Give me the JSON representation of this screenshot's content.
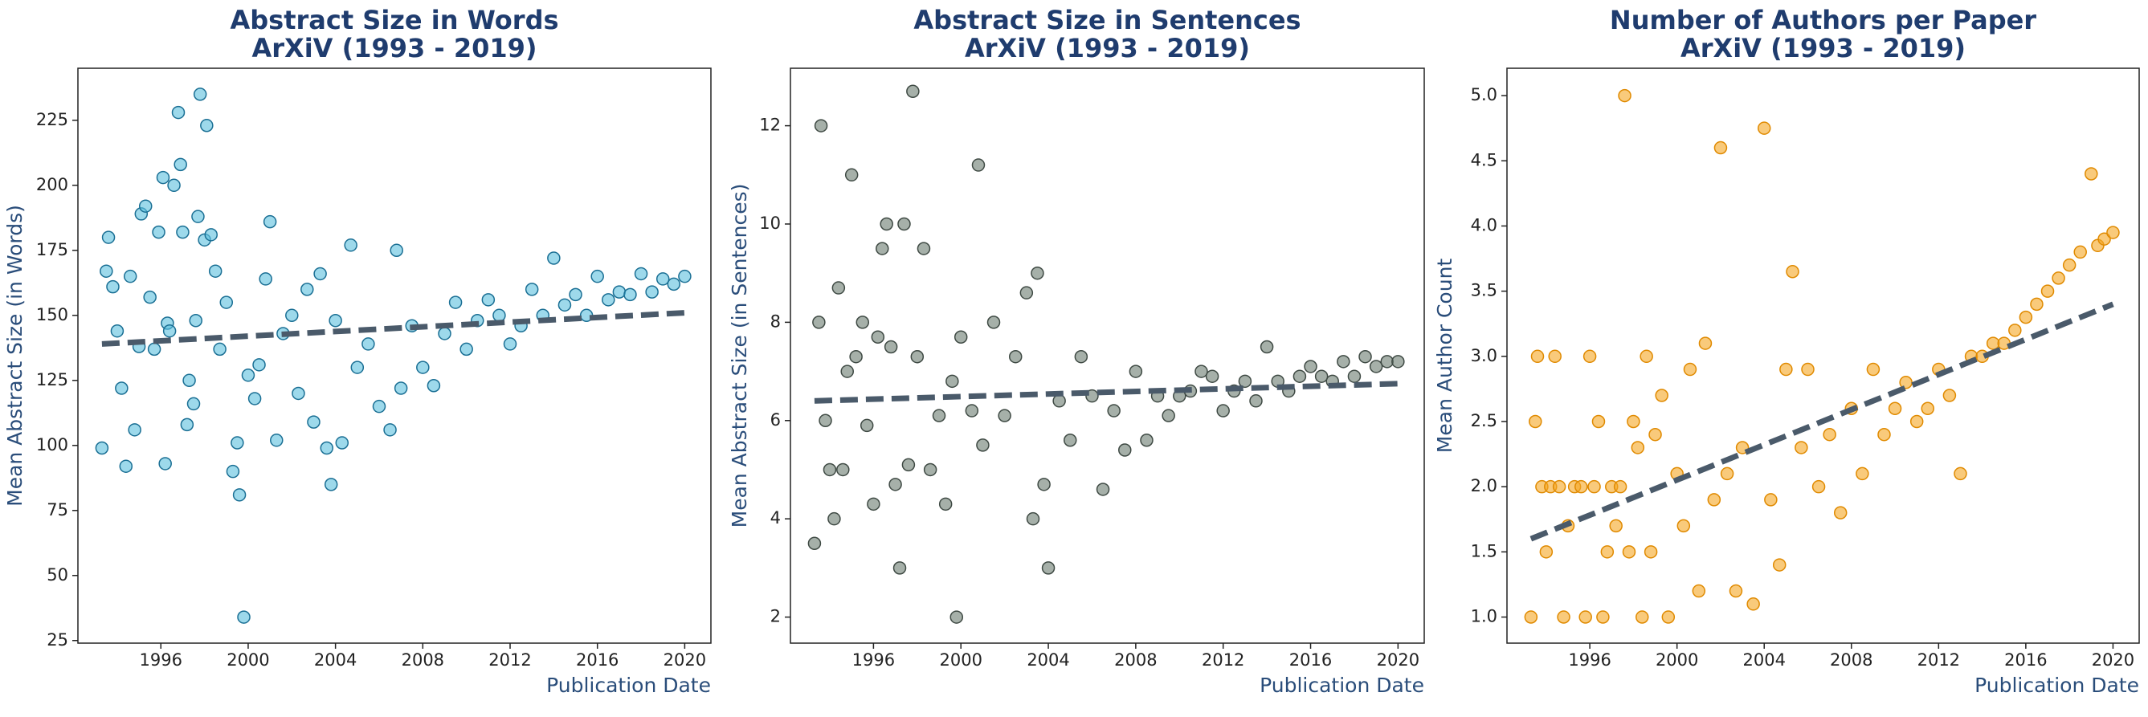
{
  "chart_data": [
    {
      "type": "scatter",
      "title": [
        "Abstract Size in Words",
        "ArXiV (1993 - 2019)"
      ],
      "xlabel": "Publication Date",
      "ylabel": "Mean Abstract Size (in Words)",
      "color": "#5bc0de",
      "edgecolor": "#1a6f94",
      "xlim": [
        1992.2,
        2021.2
      ],
      "xticks": [
        1996,
        2000,
        2004,
        2008,
        2012,
        2016,
        2020
      ],
      "ylim": [
        24,
        245
      ],
      "yticks": [
        25,
        50,
        75,
        100,
        125,
        150,
        175,
        200,
        225
      ],
      "x": [
        1993.3,
        1993.5,
        1993.6,
        1993.8,
        1994,
        1994.2,
        1994.4,
        1994.6,
        1994.8,
        1995,
        1995.1,
        1995.3,
        1995.5,
        1995.7,
        1995.9,
        1996.1,
        1996.2,
        1996.3,
        1996.4,
        1996.6,
        1996.8,
        1996.9,
        1997,
        1997.2,
        1997.3,
        1997.5,
        1997.6,
        1997.7,
        1997.8,
        1998,
        1998.1,
        1998.3,
        1998.5,
        1998.7,
        1999,
        1999.3,
        1999.5,
        1999.6,
        1999.8,
        2000,
        2000.3,
        2000.5,
        2000.8,
        2001,
        2001.3,
        2001.6,
        2002,
        2002.3,
        2002.7,
        2003,
        2003.3,
        2003.6,
        2003.8,
        2004,
        2004.3,
        2004.7,
        2005,
        2005.5,
        2006,
        2006.5,
        2006.8,
        2007,
        2007.5,
        2008,
        2008.5,
        2009,
        2009.5,
        2010,
        2010.5,
        2011,
        2011.5,
        2012,
        2012.5,
        2013,
        2013.5,
        2014,
        2014.5,
        2015,
        2015.5,
        2016,
        2016.5,
        2017,
        2017.5,
        2018,
        2018.5,
        2019,
        2019.5,
        2020
      ],
      "y": [
        99,
        167,
        180,
        161,
        144,
        122,
        92,
        165,
        106,
        138,
        189,
        192,
        157,
        137,
        182,
        203,
        93,
        147,
        144,
        200,
        228,
        208,
        182,
        108,
        125,
        116,
        148,
        188,
        235,
        179,
        223,
        181,
        167,
        137,
        155,
        90,
        101,
        81,
        34,
        127,
        118,
        131,
        164,
        186,
        102,
        143,
        150,
        120,
        160,
        109,
        166,
        99,
        85,
        148,
        101,
        177,
        130,
        139,
        115,
        106,
        175,
        122,
        146,
        130,
        123,
        143,
        155,
        137,
        148,
        156,
        150,
        139,
        146,
        160,
        150,
        172,
        154,
        158,
        150,
        165,
        156,
        159,
        158,
        166,
        159,
        164,
        162,
        165
      ],
      "trend": {
        "color": "#4a5a6a",
        "x": [
          1993.3,
          2020
        ],
        "y": [
          139,
          151
        ]
      }
    },
    {
      "type": "scatter",
      "title": [
        "Abstract Size in Sentences",
        "ArXiV (1993 - 2019)"
      ],
      "xlabel": "Publication Date",
      "ylabel": "Mean Abstract Size (in Sentences)",
      "color": "#6b7b70",
      "edgecolor": "#3f4a44",
      "xlim": [
        1992.2,
        2021.2
      ],
      "xticks": [
        1996,
        2000,
        2004,
        2008,
        2012,
        2016,
        2020
      ],
      "ylim": [
        1.47,
        13.17
      ],
      "yticks": [
        2,
        4,
        6,
        8,
        10,
        12
      ],
      "x": [
        1993.3,
        1993.5,
        1993.6,
        1993.8,
        1994,
        1994.2,
        1994.4,
        1994.6,
        1994.8,
        1995,
        1995.2,
        1995.5,
        1995.7,
        1996,
        1996.2,
        1996.4,
        1996.6,
        1996.8,
        1997,
        1997.2,
        1997.4,
        1997.6,
        1997.8,
        1998,
        1998.3,
        1998.6,
        1999,
        1999.3,
        1999.6,
        1999.8,
        2000,
        2000.5,
        2000.8,
        2001,
        2001.5,
        2002,
        2002.5,
        2003,
        2003.3,
        2003.5,
        2003.8,
        2004,
        2004.5,
        2005,
        2005.5,
        2006,
        2006.5,
        2007,
        2007.5,
        2008,
        2008.5,
        2009,
        2009.5,
        2010,
        2010.5,
        2011,
        2011.5,
        2012,
        2012.5,
        2013,
        2013.5,
        2014,
        2014.5,
        2015,
        2015.5,
        2016,
        2016.5,
        2017,
        2017.5,
        2018,
        2018.5,
        2019,
        2019.5,
        2020
      ],
      "y": [
        3.5,
        8,
        12,
        6,
        5,
        4,
        8.7,
        5,
        7,
        11,
        7.3,
        8,
        5.9,
        4.3,
        7.7,
        9.5,
        10,
        7.5,
        4.7,
        3,
        10,
        5.1,
        12.7,
        7.3,
        9.5,
        5,
        6.1,
        4.3,
        6.8,
        2,
        7.7,
        6.2,
        11.2,
        5.5,
        8,
        6.1,
        7.3,
        8.6,
        4,
        9,
        4.7,
        3,
        6.4,
        5.6,
        7.3,
        6.5,
        4.6,
        6.2,
        5.4,
        7,
        5.6,
        6.5,
        6.1,
        6.5,
        6.6,
        7,
        6.9,
        6.2,
        6.6,
        6.8,
        6.4,
        7.5,
        6.8,
        6.6,
        6.9,
        7.1,
        6.9,
        6.8,
        7.2,
        6.9,
        7.3,
        7.1,
        7.2,
        7.2
      ],
      "trend": {
        "color": "#4a5a6a",
        "x": [
          1993.3,
          2020
        ],
        "y": [
          6.4,
          6.75
        ]
      }
    },
    {
      "type": "scatter",
      "title": [
        "Number of Authors per Paper",
        "ArXiV (1993 - 2019)"
      ],
      "xlabel": "Publication Date",
      "ylabel": "Mean Author Count",
      "color": "#f5a623",
      "edgecolor": "#e08a00",
      "xlim": [
        1992.2,
        2021.2
      ],
      "xticks": [
        1996,
        2000,
        2004,
        2008,
        2012,
        2016,
        2020
      ],
      "ylim": [
        0.8,
        5.21
      ],
      "yticks": [
        {
          "value": 1,
          "label": "1.0"
        },
        1.5,
        {
          "value": 2,
          "label": "2.0"
        },
        2.5,
        {
          "value": 3,
          "label": "3.0"
        },
        3.5,
        {
          "value": 4,
          "label": "4.0"
        },
        4.5,
        {
          "value": 5,
          "label": "5.0"
        }
      ],
      "x": [
        1993.3,
        1993.5,
        1993.6,
        1993.8,
        1994,
        1994.2,
        1994.4,
        1994.6,
        1994.8,
        1995,
        1995.3,
        1995.6,
        1995.8,
        1996,
        1996.2,
        1996.4,
        1996.6,
        1996.8,
        1997,
        1997.2,
        1997.4,
        1997.6,
        1997.8,
        1998,
        1998.2,
        1998.4,
        1998.6,
        1998.8,
        1999,
        1999.3,
        1999.6,
        2000,
        2000.3,
        2000.6,
        2001,
        2001.3,
        2001.7,
        2002,
        2002.3,
        2002.7,
        2003,
        2003.5,
        2004,
        2004.3,
        2004.7,
        2005,
        2005.3,
        2005.7,
        2006,
        2006.5,
        2007,
        2007.5,
        2008,
        2008.5,
        2009,
        2009.5,
        2010,
        2010.5,
        2011,
        2011.5,
        2012,
        2012.5,
        2013,
        2013.5,
        2014,
        2014.5,
        2015,
        2015.5,
        2016,
        2016.5,
        2017,
        2017.5,
        2018,
        2018.5,
        2019,
        2019.3,
        2019.6,
        2020
      ],
      "y": [
        1.0,
        2.5,
        3.0,
        2.0,
        1.5,
        2.0,
        3.0,
        2.0,
        1.0,
        1.7,
        2.0,
        2.0,
        1.0,
        3.0,
        2.0,
        2.5,
        1.0,
        1.5,
        2.0,
        1.7,
        2.0,
        5.0,
        1.5,
        2.5,
        2.3,
        1.0,
        3.0,
        1.5,
        2.4,
        2.7,
        1.0,
        2.1,
        1.7,
        2.9,
        1.2,
        3.1,
        1.9,
        4.6,
        2.1,
        1.2,
        2.3,
        1.1,
        4.75,
        1.9,
        1.4,
        2.9,
        3.65,
        2.3,
        2.9,
        2.0,
        2.4,
        1.8,
        2.6,
        2.1,
        2.9,
        2.4,
        2.6,
        2.8,
        2.5,
        2.6,
        2.9,
        2.7,
        2.1,
        3.0,
        3.0,
        3.1,
        3.1,
        3.2,
        3.3,
        3.4,
        3.5,
        3.6,
        3.7,
        3.8,
        4.4,
        3.85,
        3.9,
        3.95
      ],
      "trend": {
        "color": "#4a5a6a",
        "x": [
          1993.3,
          2020
        ],
        "y": [
          1.6,
          3.4
        ]
      }
    }
  ]
}
